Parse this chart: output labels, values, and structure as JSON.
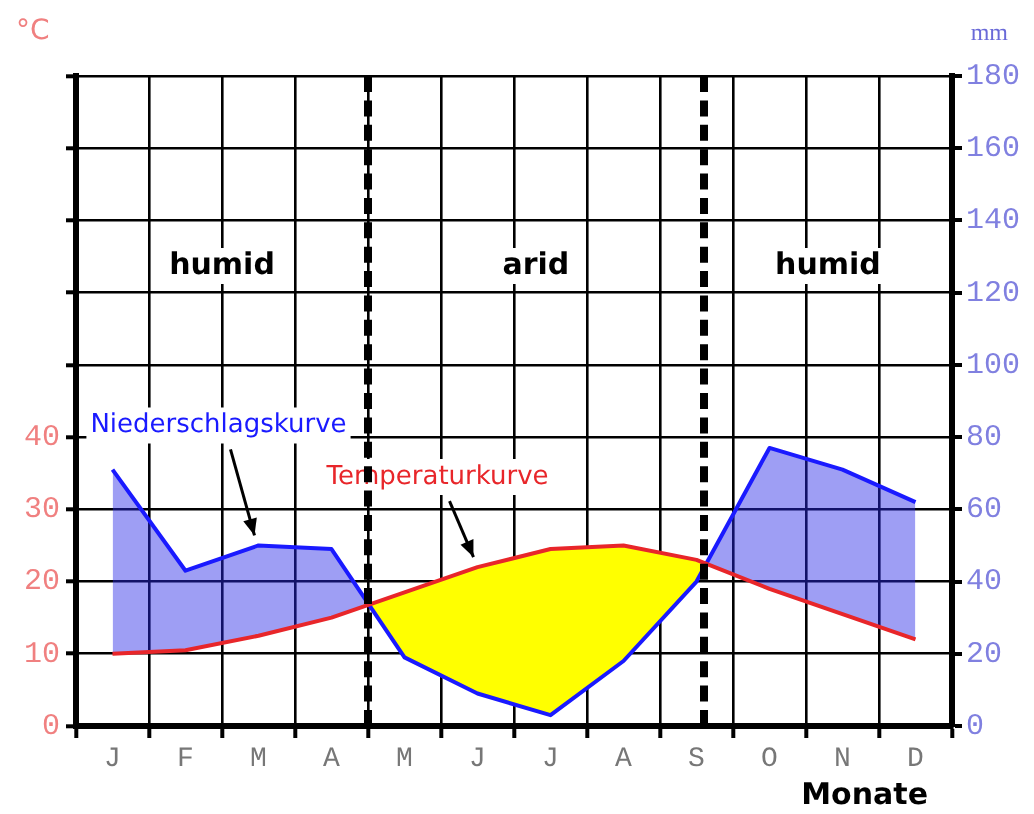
{
  "chart_data": {
    "type": "line",
    "xlabel": "Monate",
    "ylabel": "°C",
    "y2label": "mm",
    "categories": [
      "J",
      "F",
      "M",
      "A",
      "M",
      "J",
      "J",
      "A",
      "S",
      "O",
      "N",
      "D"
    ],
    "series": [
      {
        "name": "Temperaturkurve",
        "color": "#e8262a",
        "values": [
          10,
          10.5,
          12.5,
          15,
          18.5,
          22,
          24.5,
          25,
          23,
          19,
          15.5,
          12
        ]
      },
      {
        "name": "Niederschlagskurve",
        "color": "#1a1aff",
        "axis": "y2",
        "values": [
          71,
          43,
          50,
          49,
          19,
          9,
          3,
          18,
          40,
          77,
          71,
          62
        ]
      }
    ],
    "ylim": [
      0,
      90
    ],
    "yticks": [
      0,
      10,
      20,
      30,
      40,
      {
        "value": 50,
        "label": null
      },
      {
        "value": 60,
        "label": null
      },
      {
        "value": 70,
        "label": null
      },
      {
        "value": 80,
        "label": null
      },
      {
        "value": 90,
        "label": null
      }
    ],
    "y2lim": [
      0,
      180
    ],
    "y2ticks": [
      0,
      20,
      40,
      60,
      80,
      100,
      120,
      140,
      160,
      180
    ],
    "grid": true,
    "legend": false,
    "marker": "none",
    "line_style": "solid",
    "annotations": [
      "humid",
      "arid",
      "humid"
    ]
  }
}
